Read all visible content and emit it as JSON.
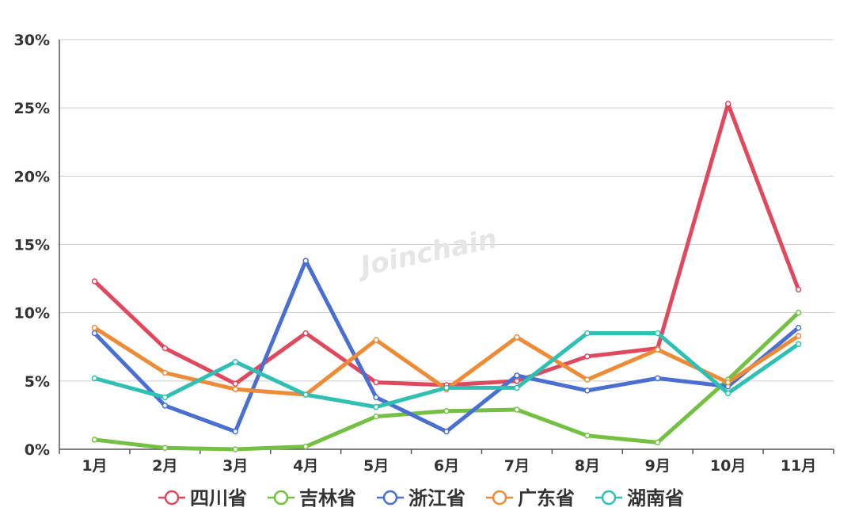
{
  "chart_data": {
    "type": "line",
    "title": "",
    "xlabel": "",
    "ylabel": "",
    "categories": [
      "1月",
      "2月",
      "3月",
      "4月",
      "5月",
      "6月",
      "7月",
      "8月",
      "9月",
      "10月",
      "11月"
    ],
    "ylim": [
      0,
      30
    ],
    "yticks": [
      0,
      5,
      10,
      15,
      20,
      25,
      30
    ],
    "ytick_labels": [
      "0%",
      "5%",
      "10%",
      "15%",
      "20%",
      "25%",
      "30%"
    ],
    "grid": true,
    "legend_position": "bottom",
    "series": [
      {
        "name": "四川省",
        "color": "#e0485e",
        "values": [
          12.3,
          7.4,
          4.8,
          8.5,
          4.9,
          4.7,
          5.0,
          6.8,
          7.4,
          25.3,
          11.7
        ]
      },
      {
        "name": "吉林省",
        "color": "#74c043",
        "values": [
          0.7,
          0.1,
          0.0,
          0.2,
          2.4,
          2.8,
          2.9,
          1.0,
          0.5,
          5.1,
          10.0
        ]
      },
      {
        "name": "浙江省",
        "color": "#4a6fd2",
        "values": [
          8.5,
          3.2,
          1.3,
          13.8,
          3.8,
          1.3,
          5.4,
          4.3,
          5.2,
          4.6,
          8.9
        ]
      },
      {
        "name": "广东省",
        "color": "#ee8b36",
        "values": [
          8.9,
          5.6,
          4.4,
          4.0,
          8.0,
          4.4,
          8.2,
          5.1,
          7.3,
          4.9,
          8.3
        ]
      },
      {
        "name": "湖南省",
        "color": "#30c0b3",
        "values": [
          5.2,
          3.8,
          6.4,
          4.0,
          3.1,
          4.5,
          4.5,
          8.5,
          8.5,
          4.1,
          7.7
        ]
      }
    ]
  },
  "watermark": "Joinchain"
}
